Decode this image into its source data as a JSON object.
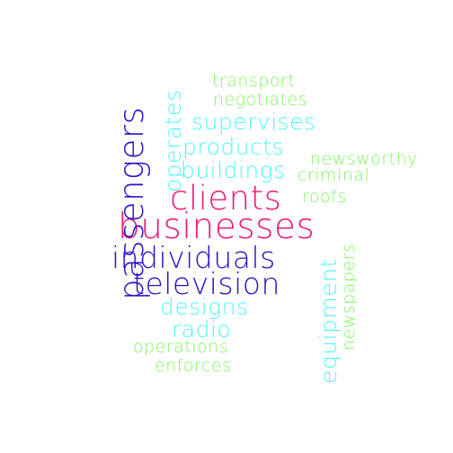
{
  "palette": {
    "green": "#7ef760",
    "cyan": "#4dfaf8",
    "magenta": "#ea1a78",
    "indigo": "#2a12c8"
  },
  "words": [
    {
      "text": "transport",
      "color": "#7ef760",
      "orientation": "horizontal"
    },
    {
      "text": "negotiates",
      "color": "#7ef760",
      "orientation": "horizontal"
    },
    {
      "text": "supervises",
      "color": "#4dfaf8",
      "orientation": "horizontal"
    },
    {
      "text": "products",
      "color": "#4dfaf8",
      "orientation": "horizontal"
    },
    {
      "text": "newsworthy",
      "color": "#7ef760",
      "orientation": "horizontal"
    },
    {
      "text": "buildings",
      "color": "#4dfaf8",
      "orientation": "horizontal"
    },
    {
      "text": "criminal",
      "color": "#7ef760",
      "orientation": "horizontal"
    },
    {
      "text": "clients",
      "color": "#ea1a78",
      "orientation": "horizontal"
    },
    {
      "text": "roofs",
      "color": "#7ef760",
      "orientation": "horizontal"
    },
    {
      "text": "businesses",
      "color": "#ea1a78",
      "orientation": "horizontal"
    },
    {
      "text": "individuals",
      "color": "#2a12c8",
      "orientation": "horizontal"
    },
    {
      "text": "television",
      "color": "#2a12c8",
      "orientation": "horizontal"
    },
    {
      "text": "designs",
      "color": "#4dfaf8",
      "orientation": "horizontal"
    },
    {
      "text": "radio",
      "color": "#4dfaf8",
      "orientation": "horizontal"
    },
    {
      "text": "operations",
      "color": "#7ef760",
      "orientation": "horizontal"
    },
    {
      "text": "enforces",
      "color": "#7ef760",
      "orientation": "horizontal"
    },
    {
      "text": "operates",
      "color": "#4dfaf8",
      "orientation": "vertical"
    },
    {
      "text": "passengers",
      "color": "#2a12c8",
      "orientation": "vertical"
    },
    {
      "text": "equipment",
      "color": "#4dfaf8",
      "orientation": "vertical"
    },
    {
      "text": "newspapers",
      "color": "#7ef760",
      "orientation": "vertical"
    }
  ]
}
